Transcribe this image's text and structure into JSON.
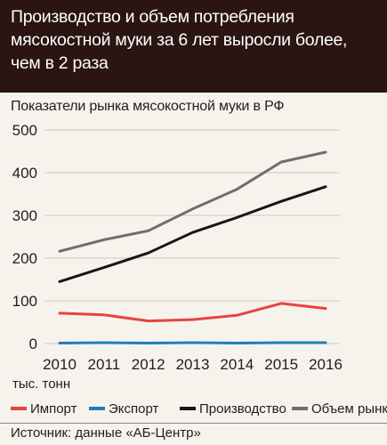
{
  "header": {
    "title": "Производство и объем потребления мясокостной муки за 6 лет выросли более, чем в 2 раза"
  },
  "chart_data": {
    "type": "line",
    "title": "Показатели рынка мясокостной муки в РФ",
    "unit": "тыс. тонн",
    "x": [
      2010,
      2011,
      2012,
      2013,
      2014,
      2015,
      2016
    ],
    "x_ticks": [
      "2010",
      "2011",
      "2012",
      "2013",
      "2014",
      "2015",
      "2016"
    ],
    "y_ticks": [
      "0",
      "100",
      "200",
      "300",
      "400",
      "500"
    ],
    "ylim": [
      0,
      500
    ],
    "grid": true,
    "legend_position": "bottom",
    "series": [
      {
        "name": "Импорт",
        "color": "#e8433f",
        "values": [
          71,
          67,
          53,
          56,
          66,
          94,
          82
        ]
      },
      {
        "name": "Экспорт",
        "color": "#1e7fb8",
        "values": [
          1,
          2,
          1,
          2,
          1,
          2,
          2
        ]
      },
      {
        "name": "Производство",
        "color": "#1c1412",
        "values": [
          145,
          178,
          212,
          260,
          295,
          333,
          367
        ]
      },
      {
        "name": "Объем рынка",
        "color": "#6e6e6e",
        "values": [
          216,
          243,
          264,
          315,
          361,
          425,
          448
        ]
      }
    ]
  },
  "source": "Источник: данные «АБ-Центр»"
}
